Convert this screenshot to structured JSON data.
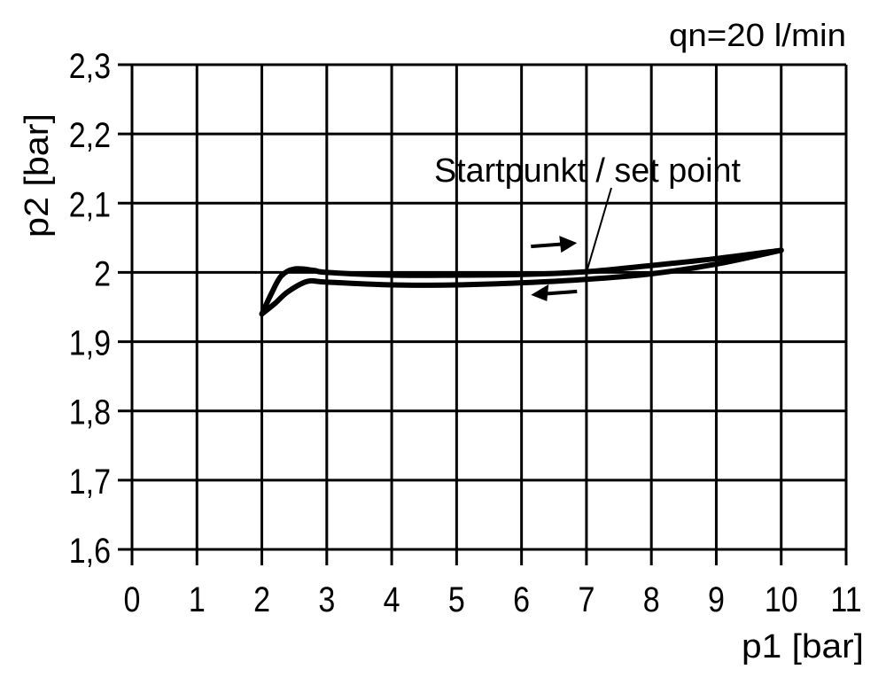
{
  "chart_data": {
    "type": "line",
    "title": "",
    "annotation_top_right": "qn=20 l/min",
    "xlabel": "p1 [bar]",
    "ylabel": "p2 [bar]",
    "xlim": [
      0,
      11
    ],
    "ylim": [
      1.6,
      2.3
    ],
    "x_ticks": [
      0,
      1,
      2,
      3,
      4,
      5,
      6,
      7,
      8,
      9,
      10,
      11
    ],
    "x_tick_labels": [
      "0",
      "1",
      "2",
      "3",
      "4",
      "5",
      "6",
      "7",
      "8",
      "9",
      "10",
      "11"
    ],
    "y_ticks": [
      1.6,
      1.7,
      1.8,
      1.9,
      2.0,
      2.1,
      2.2,
      2.3
    ],
    "y_tick_labels": [
      "1,6",
      "1,7",
      "1,8",
      "1,9",
      "2",
      "2,1",
      "2,2",
      "2,3"
    ],
    "grid": true,
    "line_color": "#000000",
    "series": [
      {
        "direction": "increasing",
        "x": [
          2.0,
          2.15,
          2.3,
          2.5,
          2.8,
          3.0,
          4.0,
          5.0,
          6.0,
          7.0,
          8.0,
          9.0,
          10.0
        ],
        "y": [
          1.94,
          1.97,
          1.995,
          2.005,
          2.003,
          2.0,
          1.996,
          1.996,
          1.997,
          2.001,
          2.01,
          2.02,
          2.032
        ]
      },
      {
        "direction": "decreasing",
        "x": [
          2.0,
          2.2,
          2.4,
          2.7,
          3.0,
          4.0,
          5.0,
          6.0,
          7.0,
          8.0,
          9.0,
          10.0
        ],
        "y": [
          1.94,
          1.955,
          1.972,
          1.987,
          1.986,
          1.982,
          1.982,
          1.985,
          1.99,
          1.998,
          2.012,
          2.032
        ]
      }
    ],
    "annotations": [
      {
        "text": "Startpunkt / set point",
        "points_to": [
          7.0,
          2.0
        ]
      },
      {
        "arrow": "right",
        "at": [
          6.5,
          2.04
        ]
      },
      {
        "arrow": "left",
        "at": [
          6.5,
          1.97
        ]
      }
    ]
  }
}
